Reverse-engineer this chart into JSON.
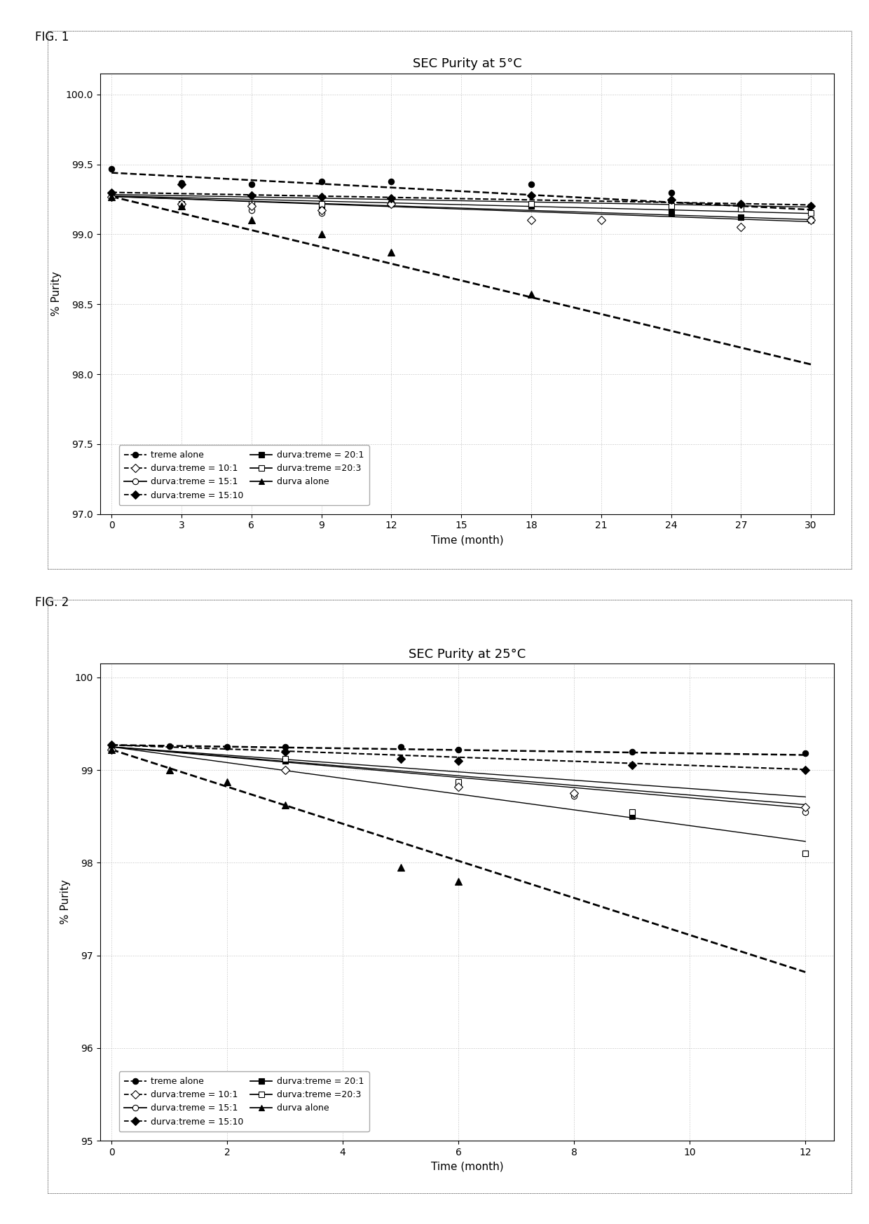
{
  "fig1": {
    "title": "SEC Purity at 5°C",
    "xlabel": "Time (month)",
    "ylabel": "% Purity",
    "xlim": [
      -0.5,
      31
    ],
    "ylim": [
      97.0,
      100.15
    ],
    "yticks": [
      97.0,
      97.5,
      98.0,
      98.5,
      99.0,
      99.5,
      100.0
    ],
    "xticks": [
      0,
      3,
      6,
      9,
      12,
      15,
      18,
      21,
      24,
      27,
      30
    ],
    "series": {
      "treme_alone": {
        "x": [
          0,
          3,
          6,
          9,
          12,
          18,
          24,
          27,
          30
        ],
        "y": [
          99.47,
          99.37,
          99.36,
          99.38,
          99.38,
          99.36,
          99.3,
          99.22,
          99.2
        ],
        "marker": "o",
        "markerfill": "black",
        "color": "black",
        "label": "treme alone",
        "markersize": 6
      },
      "durva_treme_10_1": {
        "x": [
          0,
          3,
          6,
          9,
          12,
          18,
          21,
          27,
          30
        ],
        "y": [
          99.27,
          99.22,
          99.2,
          99.17,
          99.22,
          99.1,
          99.1,
          99.05,
          99.1
        ],
        "marker": "D",
        "markerfill": "white",
        "color": "black",
        "label": "durva:treme = 10:1",
        "markersize": 6
      },
      "durva_treme_15_1": {
        "x": [
          0,
          3,
          6,
          9,
          12
        ],
        "y": [
          99.27,
          99.22,
          99.17,
          99.15,
          99.22
        ],
        "marker": "o",
        "markerfill": "white",
        "color": "black",
        "label": "durva:treme = 15:1",
        "markersize": 6
      },
      "durva_treme_15_10": {
        "x": [
          0,
          3,
          6,
          9,
          12,
          18,
          24,
          27,
          30
        ],
        "y": [
          99.3,
          99.36,
          99.28,
          99.27,
          99.26,
          99.28,
          99.25,
          99.22,
          99.2
        ],
        "marker": "D",
        "markerfill": "black",
        "color": "black",
        "label": "durva:treme = 15:10",
        "markersize": 6
      },
      "durva_treme_20_1": {
        "x": [
          0,
          3,
          6,
          9,
          12,
          18,
          24,
          27,
          30
        ],
        "y": [
          99.27,
          99.22,
          99.22,
          99.2,
          99.22,
          99.2,
          99.15,
          99.12,
          99.1
        ],
        "marker": "s",
        "markerfill": "black",
        "color": "black",
        "label": "durva:treme = 20:1",
        "markersize": 6
      },
      "durva_treme_20_3": {
        "x": [
          0,
          3,
          6,
          9,
          12,
          18,
          24,
          27,
          30
        ],
        "y": [
          99.27,
          99.22,
          99.22,
          99.22,
          99.22,
          99.22,
          99.2,
          99.18,
          99.15
        ],
        "marker": "s",
        "markerfill": "white",
        "color": "black",
        "label": "durva:treme =20:3",
        "markersize": 6
      },
      "durva_alone": {
        "x": [
          0,
          3,
          6,
          9,
          12,
          18
        ],
        "y": [
          99.27,
          99.2,
          99.1,
          99.0,
          98.87,
          98.57
        ],
        "marker": "^",
        "markerfill": "black",
        "color": "black",
        "label": "durva alone",
        "markersize": 7
      }
    },
    "trend_lines": [
      {
        "slope": -0.0088,
        "intercept": 99.44,
        "linestyle": "--",
        "color": "black",
        "linewidth": 1.8,
        "x_end": 30
      },
      {
        "slope": -0.003,
        "intercept": 99.285,
        "linestyle": "-",
        "color": "black",
        "linewidth": 1.0,
        "x_end": 30
      },
      {
        "slope": -0.0042,
        "intercept": 99.275,
        "linestyle": "-",
        "color": "black",
        "linewidth": 1.0,
        "x_end": 30
      },
      {
        "slope": -0.0055,
        "intercept": 99.27,
        "linestyle": "-",
        "color": "black",
        "linewidth": 1.0,
        "x_end": 30
      },
      {
        "slope": -0.003,
        "intercept": 99.3,
        "linestyle": "--",
        "color": "black",
        "linewidth": 1.5,
        "x_end": 30
      },
      {
        "slope": -0.006,
        "intercept": 99.27,
        "linestyle": "-",
        "color": "black",
        "linewidth": 1.0,
        "x_end": 30
      },
      {
        "slope": -0.04,
        "intercept": 99.27,
        "linestyle": "--",
        "color": "black",
        "linewidth": 2.0,
        "x_end": 30
      }
    ]
  },
  "fig2": {
    "title": "SEC Purity at 25°C",
    "xlabel": "Time (month)",
    "ylabel": "% Purity",
    "xlim": [
      -0.2,
      12.5
    ],
    "ylim": [
      95.0,
      100.15
    ],
    "yticks": [
      95.0,
      96.0,
      97.0,
      98.0,
      99.0,
      100.0
    ],
    "xticks": [
      0,
      2,
      4,
      6,
      8,
      10,
      12
    ],
    "series": {
      "treme_alone": {
        "x": [
          0,
          1,
          2,
          3,
          5,
          6,
          9,
          12
        ],
        "y": [
          99.27,
          99.26,
          99.25,
          99.25,
          99.25,
          99.22,
          99.2,
          99.18
        ],
        "marker": "o",
        "markerfill": "black",
        "color": "black",
        "label": "treme alone",
        "markersize": 6
      },
      "durva_treme_10_1": {
        "x": [
          0,
          3,
          6,
          8,
          12
        ],
        "y": [
          99.22,
          99.0,
          98.82,
          98.75,
          98.6
        ],
        "marker": "D",
        "markerfill": "white",
        "color": "black",
        "label": "durva:treme = 10:1",
        "markersize": 6
      },
      "durva_treme_15_1": {
        "x": [
          0,
          3,
          6,
          8,
          12
        ],
        "y": [
          99.22,
          99.0,
          98.82,
          98.72,
          98.55
        ],
        "marker": "o",
        "markerfill": "white",
        "color": "black",
        "label": "durva:treme = 15:1",
        "markersize": 6
      },
      "durva_treme_15_10": {
        "x": [
          0,
          3,
          5,
          6,
          9,
          12
        ],
        "y": [
          99.27,
          99.2,
          99.12,
          99.1,
          99.05,
          99.0
        ],
        "marker": "D",
        "markerfill": "black",
        "color": "black",
        "label": "durva:treme = 15:10",
        "markersize": 6
      },
      "durva_treme_20_1": {
        "x": [
          0,
          3,
          6,
          9,
          12
        ],
        "y": [
          99.22,
          99.1,
          98.85,
          98.5,
          98.1
        ],
        "marker": "s",
        "markerfill": "black",
        "color": "black",
        "label": "durva:treme = 20:1",
        "markersize": 6
      },
      "durva_treme_20_3": {
        "x": [
          0,
          3,
          6,
          9,
          12
        ],
        "y": [
          99.22,
          99.12,
          98.87,
          98.55,
          98.1
        ],
        "marker": "s",
        "markerfill": "white",
        "color": "black",
        "label": "durva:treme =20:3",
        "markersize": 6
      },
      "durva_alone": {
        "x": [
          0,
          1,
          2,
          3,
          5,
          6
        ],
        "y": [
          99.22,
          99.0,
          98.87,
          98.62,
          97.95,
          97.8
        ],
        "marker": "^",
        "markerfill": "black",
        "color": "black",
        "label": "durva alone",
        "markersize": 7
      }
    },
    "trend_lines": [
      {
        "slope": -0.009,
        "intercept": 99.27,
        "linestyle": "--",
        "color": "black",
        "linewidth": 1.8,
        "x_end": 12
      },
      {
        "slope": -0.055,
        "intercept": 99.25,
        "linestyle": "-",
        "color": "black",
        "linewidth": 1.0,
        "x_end": 12
      },
      {
        "slope": -0.052,
        "intercept": 99.25,
        "linestyle": "-",
        "color": "black",
        "linewidth": 1.0,
        "x_end": 12
      },
      {
        "slope": -0.045,
        "intercept": 99.25,
        "linestyle": "-",
        "color": "black",
        "linewidth": 1.0,
        "x_end": 12
      },
      {
        "slope": -0.022,
        "intercept": 99.27,
        "linestyle": "--",
        "color": "black",
        "linewidth": 1.5,
        "x_end": 12
      },
      {
        "slope": -0.085,
        "intercept": 99.25,
        "linestyle": "-",
        "color": "black",
        "linewidth": 1.0,
        "x_end": 12
      },
      {
        "slope": -0.2,
        "intercept": 99.22,
        "linestyle": "--",
        "color": "black",
        "linewidth": 2.0,
        "x_end": 12
      }
    ]
  },
  "legend_entries_left": [
    {
      "label": "treme alone",
      "marker": "o",
      "markerfill": "black"
    },
    {
      "label": "durva:treme = 15:1",
      "marker": "o",
      "markerfill": "white"
    },
    {
      "label": "durva:treme = 20:1",
      "marker": "s",
      "markerfill": "black"
    },
    {
      "label": "durva alone",
      "marker": "^",
      "markerfill": "black"
    }
  ],
  "legend_entries_right": [
    {
      "label": "durva:treme = 10:1",
      "marker": "D",
      "markerfill": "white"
    },
    {
      "label": "durva:treme = 15:10",
      "marker": "D",
      "markerfill": "black"
    },
    {
      "label": "durva:treme =20:3",
      "marker": "s",
      "markerfill": "white"
    }
  ],
  "background_color": "#ffffff",
  "panel_bg": "#ffffff",
  "fig_label1": "FIG. 1",
  "fig_label2": "FIG. 2"
}
